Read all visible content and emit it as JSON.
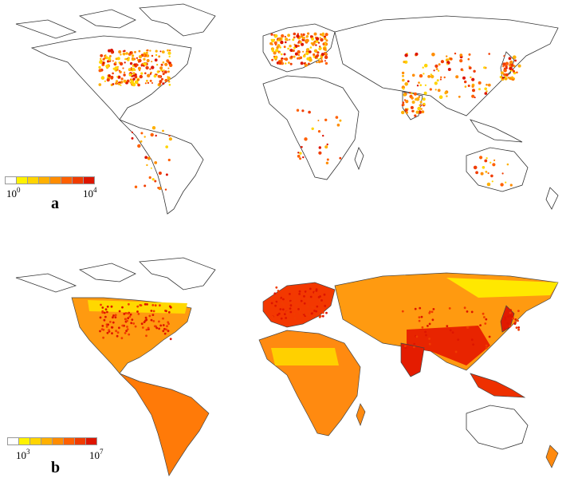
{
  "panels": [
    {
      "label": "a",
      "legend": {
        "min_base": "10",
        "min_exp": "0",
        "max_base": "10",
        "max_exp": "4",
        "colors": [
          "#ffffff",
          "#fff200",
          "#ffd400",
          "#ffb000",
          "#ff8c00",
          "#ff6000",
          "#f03c00",
          "#dd1500"
        ]
      }
    },
    {
      "label": "b",
      "legend": {
        "min_base": "10",
        "min_exp": "3",
        "max_base": "10",
        "max_exp": "7",
        "colors": [
          "#ffffff",
          "#fff200",
          "#ffd400",
          "#ffb000",
          "#ff8c00",
          "#ff6000",
          "#f03c00",
          "#dd1500"
        ]
      }
    }
  ]
}
